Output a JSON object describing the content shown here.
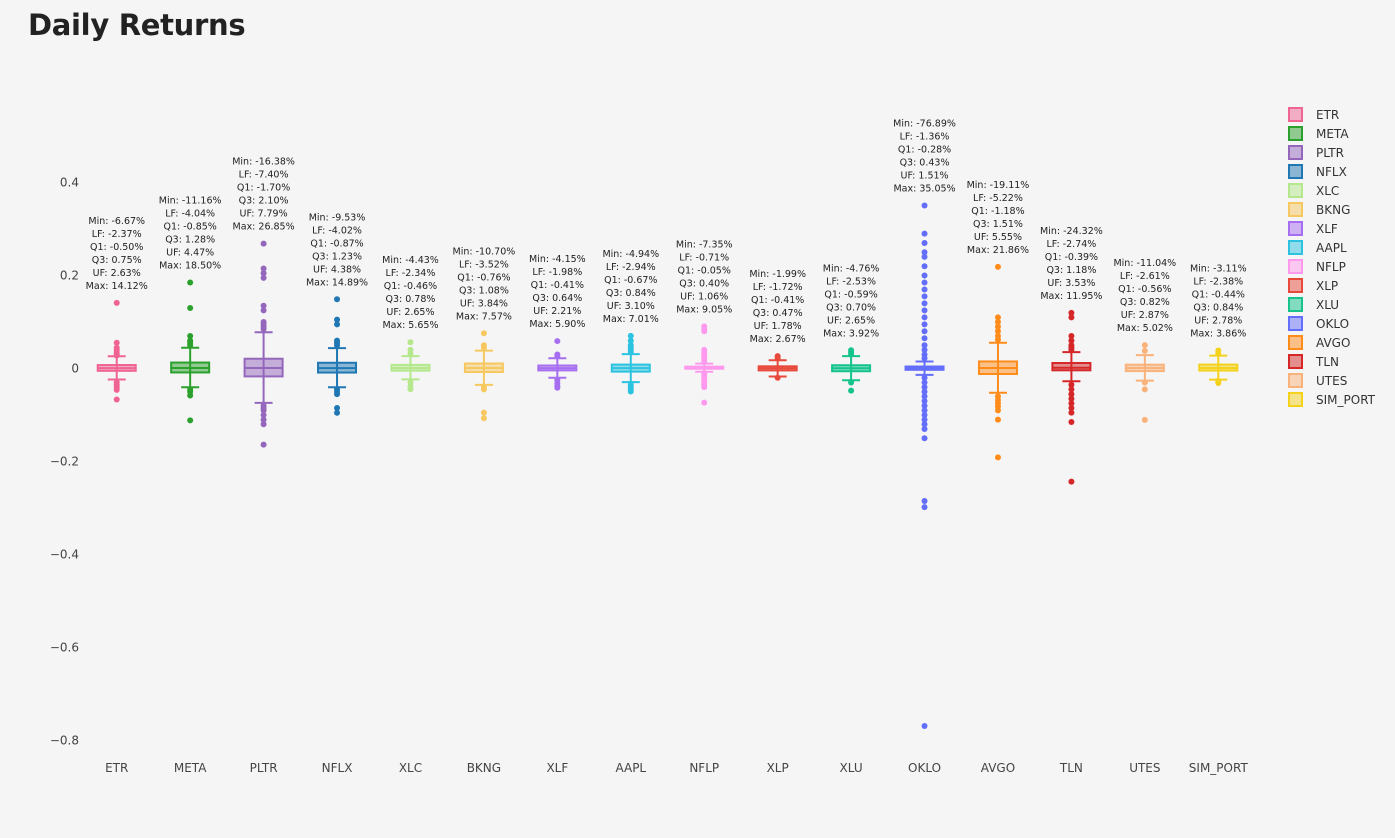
{
  "page": {
    "title": "Daily Returns"
  },
  "chart_data": {
    "type": "box",
    "title": "Daily Returns",
    "xlabel": "",
    "ylabel": "",
    "ylim": [
      -0.82,
      0.55
    ],
    "y_ticks": [
      0.4,
      0.2,
      0,
      -0.2,
      -0.4,
      -0.6,
      -0.8
    ],
    "y_tick_labels": [
      "0.4",
      "0.2",
      "0",
      "−0.2",
      "−0.4",
      "−0.6",
      "−0.8"
    ],
    "legend": {
      "position": "right"
    },
    "series": [
      {
        "name": "ETR",
        "color": "#f06493",
        "min": -0.0667,
        "lf": -0.0237,
        "q1": -0.005,
        "median": 0.0008,
        "q3": 0.0075,
        "uf": 0.0263,
        "max": 0.1412,
        "outliers": [
          0.1412,
          0.0555,
          0.045,
          0.04,
          0.035,
          0.031,
          0.028,
          -0.03,
          -0.035,
          -0.04,
          -0.046,
          -0.0667
        ],
        "annotation": [
          "Min: -6.67%",
          "LF: -2.37%",
          "Q1: -0.50%",
          "Q3: 0.75%",
          "UF: 2.63%",
          "Max: 14.12%"
        ]
      },
      {
        "name": "META",
        "color": "#2ca02c",
        "min": -0.1116,
        "lf": -0.0404,
        "q1": -0.0085,
        "median": 0.0012,
        "q3": 0.0128,
        "uf": 0.0447,
        "max": 0.185,
        "outliers": [
          0.185,
          0.13,
          0.07,
          0.06,
          0.055,
          0.05,
          -0.045,
          -0.05,
          -0.058,
          -0.1116
        ],
        "annotation": [
          "Min: -11.16%",
          "LF: -4.04%",
          "Q1: -0.85%",
          "Q3: 1.28%",
          "UF: 4.47%",
          "Max: 18.50%"
        ]
      },
      {
        "name": "PLTR",
        "color": "#9467bd",
        "min": -0.1638,
        "lf": -0.074,
        "q1": -0.017,
        "median": 0.001,
        "q3": 0.021,
        "uf": 0.0779,
        "max": 0.2685,
        "outliers": [
          0.2685,
          0.215,
          0.205,
          0.195,
          0.135,
          0.125,
          0.1,
          0.095,
          0.09,
          0.085,
          -0.08,
          -0.085,
          -0.09,
          -0.1,
          -0.11,
          -0.12,
          -0.1638
        ],
        "annotation": [
          "Min: -16.38%",
          "LF: -7.40%",
          "Q1: -1.70%",
          "Q3: 2.10%",
          "UF: 7.79%",
          "Max: 26.85%"
        ]
      },
      {
        "name": "NFLX",
        "color": "#1f77b4",
        "min": -0.0953,
        "lf": -0.0402,
        "q1": -0.0087,
        "median": 0.0008,
        "q3": 0.0123,
        "uf": 0.0438,
        "max": 0.1489,
        "outliers": [
          0.1489,
          0.105,
          0.095,
          0.06,
          0.055,
          0.05,
          -0.045,
          -0.05,
          -0.055,
          -0.085,
          -0.0953
        ],
        "annotation": [
          "Min: -9.53%",
          "LF: -4.02%",
          "Q1: -0.87%",
          "Q3: 1.23%",
          "UF: 4.38%",
          "Max: 14.89%"
        ]
      },
      {
        "name": "XLC",
        "color": "#b5e88c",
        "min": -0.0443,
        "lf": -0.0234,
        "q1": -0.0046,
        "median": 0.001,
        "q3": 0.0078,
        "uf": 0.0265,
        "max": 0.0565,
        "outliers": [
          0.0565,
          0.04,
          0.032,
          -0.03,
          -0.038,
          -0.0443
        ],
        "annotation": [
          "Min: -4.43%",
          "LF: -2.34%",
          "Q1: -0.46%",
          "Q3: 0.78%",
          "UF: 2.65%",
          "Max: 5.65%"
        ]
      },
      {
        "name": "BKNG",
        "color": "#f7c85f",
        "min": -0.107,
        "lf": -0.0352,
        "q1": -0.0076,
        "median": 0.001,
        "q3": 0.0108,
        "uf": 0.0384,
        "max": 0.0757,
        "outliers": [
          0.0757,
          0.05,
          0.045,
          -0.04,
          -0.045,
          -0.095,
          -0.107
        ],
        "annotation": [
          "Min: -10.70%",
          "LF: -3.52%",
          "Q1: -0.76%",
          "Q3: 1.08%",
          "UF: 3.84%",
          "Max: 7.57%"
        ]
      },
      {
        "name": "XLF",
        "color": "#a66ef0",
        "min": -0.0415,
        "lf": -0.0198,
        "q1": -0.0041,
        "median": 0.0008,
        "q3": 0.0064,
        "uf": 0.0221,
        "max": 0.059,
        "outliers": [
          0.059,
          0.03,
          0.026,
          -0.025,
          -0.032,
          -0.038,
          -0.0415
        ],
        "annotation": [
          "Min: -4.15%",
          "LF: -1.98%",
          "Q1: -0.41%",
          "Q3: 0.64%",
          "UF: 2.21%",
          "Max: 5.90%"
        ]
      },
      {
        "name": "AAPL",
        "color": "#2bc3e0",
        "min": -0.0494,
        "lf": -0.0294,
        "q1": -0.0067,
        "median": 0.0008,
        "q3": 0.0084,
        "uf": 0.031,
        "max": 0.0701,
        "outliers": [
          0.0701,
          0.06,
          0.05,
          0.045,
          0.04,
          0.036,
          -0.035,
          -0.04,
          -0.045,
          -0.0494
        ],
        "annotation": [
          "Min: -4.94%",
          "LF: -2.94%",
          "Q1: -0.67%",
          "Q3: 0.84%",
          "UF: 3.10%",
          "Max: 7.01%"
        ]
      },
      {
        "name": "NFLP",
        "color": "#ff99ee",
        "min": -0.0735,
        "lf": -0.0071,
        "q1": -0.0005,
        "median": 0.0015,
        "q3": 0.004,
        "uf": 0.0106,
        "max": 0.0905,
        "outliers": [
          0.0905,
          0.085,
          0.08,
          0.04,
          0.035,
          0.03,
          0.025,
          0.02,
          0.015,
          -0.01,
          -0.015,
          -0.02,
          -0.025,
          -0.03,
          -0.035,
          -0.04,
          -0.0735
        ],
        "annotation": [
          "Min: -7.35%",
          "LF: -0.71%",
          "Q1: -0.05%",
          "Q3: 0.40%",
          "UF: 1.06%",
          "Max: 9.05%"
        ]
      },
      {
        "name": "XLP",
        "color": "#e8493b",
        "min": -0.0199,
        "lf": -0.0172,
        "q1": -0.0041,
        "median": 0.0005,
        "q3": 0.0047,
        "uf": 0.0178,
        "max": 0.0267,
        "outliers": [
          0.0267,
          0.022,
          -0.0199
        ],
        "annotation": [
          "Min: -1.99%",
          "LF: -1.72%",
          "Q1: -0.41%",
          "Q3: 0.47%",
          "UF: 1.78%",
          "Max: 2.67%"
        ]
      },
      {
        "name": "XLU",
        "color": "#14c48c",
        "min": -0.0476,
        "lf": -0.0253,
        "q1": -0.0059,
        "median": 0.0005,
        "q3": 0.007,
        "uf": 0.0265,
        "max": 0.0392,
        "outliers": [
          0.0392,
          0.035,
          0.03,
          -0.03,
          -0.0476
        ],
        "annotation": [
          "Min: -4.76%",
          "LF: -2.53%",
          "Q1: -0.59%",
          "Q3: 0.70%",
          "UF: 2.65%",
          "Max: 3.92%"
        ]
      },
      {
        "name": "OKLO",
        "color": "#636efa",
        "min": -0.7689,
        "lf": -0.0136,
        "q1": -0.0028,
        "median": 0.0005,
        "q3": 0.0043,
        "uf": 0.0151,
        "max": 0.3505,
        "outliers": [
          0.3505,
          0.29,
          0.27,
          0.25,
          0.24,
          0.22,
          0.2,
          0.185,
          0.17,
          0.155,
          0.14,
          0.125,
          0.11,
          0.095,
          0.08,
          0.065,
          0.05,
          0.04,
          0.03,
          0.022,
          -0.02,
          -0.03,
          -0.04,
          -0.05,
          -0.06,
          -0.07,
          -0.08,
          -0.09,
          -0.1,
          -0.11,
          -0.12,
          -0.13,
          -0.15,
          -0.285,
          -0.298,
          -0.7689
        ],
        "annotation": [
          "Min: -76.89%",
          "LF: -1.36%",
          "Q1: -0.28%",
          "Q3: 0.43%",
          "UF: 1.51%",
          "Max: 35.05%"
        ]
      },
      {
        "name": "AVGO",
        "color": "#ff8c1a",
        "min": -0.1911,
        "lf": -0.0522,
        "q1": -0.0118,
        "median": 0.001,
        "q3": 0.0151,
        "uf": 0.0555,
        "max": 0.2186,
        "outliers": [
          0.2186,
          0.11,
          0.1,
          0.09,
          0.08,
          0.07,
          0.062,
          -0.06,
          -0.068,
          -0.075,
          -0.082,
          -0.09,
          -0.11,
          -0.1911
        ],
        "annotation": [
          "Min: -19.11%",
          "LF: -5.22%",
          "Q1: -1.18%",
          "Q3: 1.51%",
          "UF: 5.55%",
          "Max: 21.86%"
        ]
      },
      {
        "name": "TLN",
        "color": "#d62728",
        "min": -0.2432,
        "lf": -0.0274,
        "q1": -0.0039,
        "median": 0.0015,
        "q3": 0.0118,
        "uf": 0.0353,
        "max": 0.1195,
        "outliers": [
          0.1195,
          0.11,
          0.07,
          0.06,
          0.05,
          0.045,
          0.04,
          -0.035,
          -0.045,
          -0.055,
          -0.065,
          -0.075,
          -0.085,
          -0.095,
          -0.115,
          -0.2432
        ],
        "annotation": [
          "Min: -24.32%",
          "LF: -2.74%",
          "Q1: -0.39%",
          "Q3: 1.18%",
          "UF: 3.53%",
          "Max: 11.95%"
        ]
      },
      {
        "name": "UTES",
        "color": "#f9b27a",
        "min": -0.1104,
        "lf": -0.0261,
        "q1": -0.0056,
        "median": 0.001,
        "q3": 0.0082,
        "uf": 0.0287,
        "max": 0.0502,
        "outliers": [
          0.0502,
          0.038,
          -0.03,
          -0.045,
          -0.1104
        ],
        "annotation": [
          "Min: -11.04%",
          "LF: -2.61%",
          "Q1: -0.56%",
          "Q3: 0.82%",
          "UF: 2.87%",
          "Max: 5.02%"
        ]
      },
      {
        "name": "SIM_PORT",
        "color": "#f4d21c",
        "min": -0.0311,
        "lf": -0.0238,
        "q1": -0.0044,
        "median": 0.001,
        "q3": 0.0084,
        "uf": 0.0278,
        "max": 0.0386,
        "outliers": [
          0.0386,
          0.032,
          -0.027,
          -0.0311
        ],
        "annotation": [
          "Min: -3.11%",
          "LF: -2.38%",
          "Q1: -0.44%",
          "Q3: 0.84%",
          "UF: 2.78%",
          "Max: 3.86%"
        ]
      }
    ]
  }
}
